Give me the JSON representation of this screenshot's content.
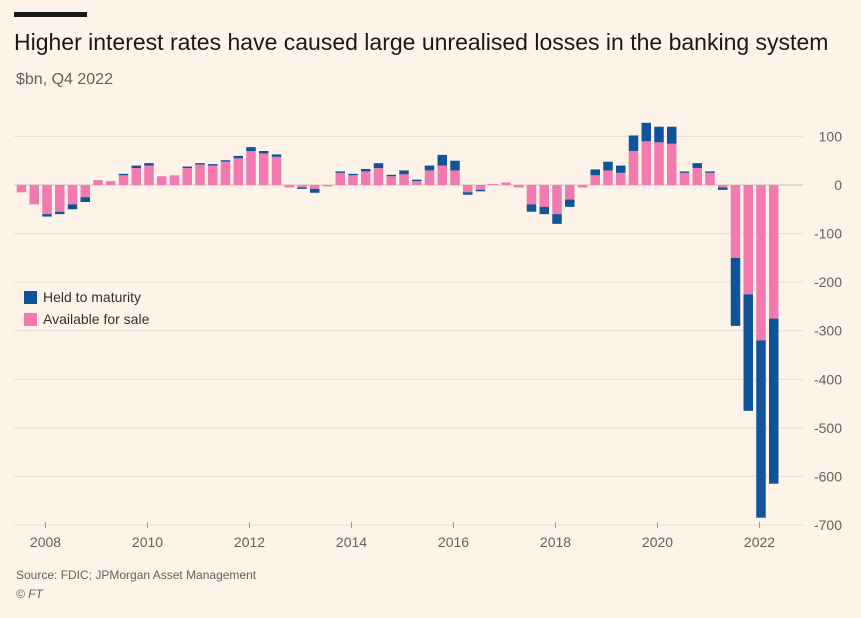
{
  "header": {
    "title": "Higher interest rates have caused large unrealised losses in the banking system",
    "subtitle": "$bn, Q4 2022"
  },
  "footer": {
    "source": "Source: FDIC; JPMorgan Asset Management",
    "credit": "© FT"
  },
  "colors": {
    "held_to_maturity": "#0f5499",
    "available_for_sale": "#f27aaf",
    "background": "#fdf3e8",
    "gridline": "#e9ddd0",
    "zero_line": "#cfc2b4"
  },
  "chart_data": {
    "type": "bar",
    "stacked": true,
    "title": "Higher interest rates have caused large unrealised losses in the banking system",
    "subtitle": "$bn, Q4 2022",
    "xlabel": "",
    "ylabel": "$bn",
    "ylim": [
      -700,
      130
    ],
    "yticks": [
      100,
      0,
      -100,
      -200,
      -300,
      -400,
      -500,
      -600,
      -700
    ],
    "xticks": [
      "2008",
      "2010",
      "2012",
      "2014",
      "2016",
      "2018",
      "2020",
      "2022"
    ],
    "legend": [
      "Held to maturity",
      "Available for sale"
    ],
    "legend_position": "left",
    "categories": [
      "Q1 2008",
      "Q2 2008",
      "Q3 2008",
      "Q4 2008",
      "Q1 2009",
      "Q2 2009",
      "Q3 2009",
      "Q4 2009",
      "Q1 2010",
      "Q2 2010",
      "Q3 2010",
      "Q4 2010",
      "Q1 2011",
      "Q2 2011",
      "Q3 2011",
      "Q4 2011",
      "Q1 2012",
      "Q2 2012",
      "Q3 2012",
      "Q4 2012",
      "Q1 2013",
      "Q2 2013",
      "Q3 2013",
      "Q4 2013",
      "Q1 2014",
      "Q2 2014",
      "Q3 2014",
      "Q4 2014",
      "Q1 2015",
      "Q2 2015",
      "Q3 2015",
      "Q4 2015",
      "Q1 2016",
      "Q2 2016",
      "Q3 2016",
      "Q4 2016",
      "Q1 2017",
      "Q2 2017",
      "Q3 2017",
      "Q4 2017",
      "Q1 2018",
      "Q2 2018",
      "Q3 2018",
      "Q4 2018",
      "Q1 2019",
      "Q2 2019",
      "Q3 2019",
      "Q4 2019",
      "Q1 2020",
      "Q2 2020",
      "Q3 2020",
      "Q4 2020",
      "Q1 2021",
      "Q2 2021",
      "Q3 2021",
      "Q4 2021",
      "Q1 2022",
      "Q2 2022",
      "Q3 2022",
      "Q4 2022"
    ],
    "series": [
      {
        "name": "Available for sale",
        "values": [
          -15,
          -40,
          -60,
          -55,
          -40,
          -25,
          10,
          8,
          20,
          35,
          40,
          18,
          20,
          35,
          42,
          40,
          48,
          55,
          70,
          65,
          58,
          -5,
          -5,
          -8,
          -3,
          25,
          20,
          28,
          35,
          18,
          22,
          8,
          30,
          40,
          30,
          -15,
          -10,
          2,
          5,
          -5,
          -40,
          -45,
          -60,
          -30,
          -5,
          20,
          30,
          25,
          70,
          90,
          88,
          85,
          25,
          35,
          25,
          -5,
          -150,
          -225,
          -320,
          -275
        ]
      },
      {
        "name": "Held to maturity",
        "values": [
          0,
          0,
          -5,
          -5,
          -10,
          -10,
          0,
          0,
          3,
          5,
          5,
          0,
          0,
          3,
          3,
          3,
          3,
          5,
          8,
          5,
          5,
          0,
          -3,
          -8,
          0,
          3,
          3,
          5,
          10,
          3,
          8,
          3,
          10,
          22,
          20,
          -5,
          -3,
          0,
          0,
          0,
          -15,
          -15,
          -20,
          -15,
          0,
          12,
          18,
          15,
          32,
          38,
          32,
          35,
          3,
          10,
          3,
          -5,
          -140,
          -240,
          -365,
          -340
        ]
      }
    ]
  }
}
